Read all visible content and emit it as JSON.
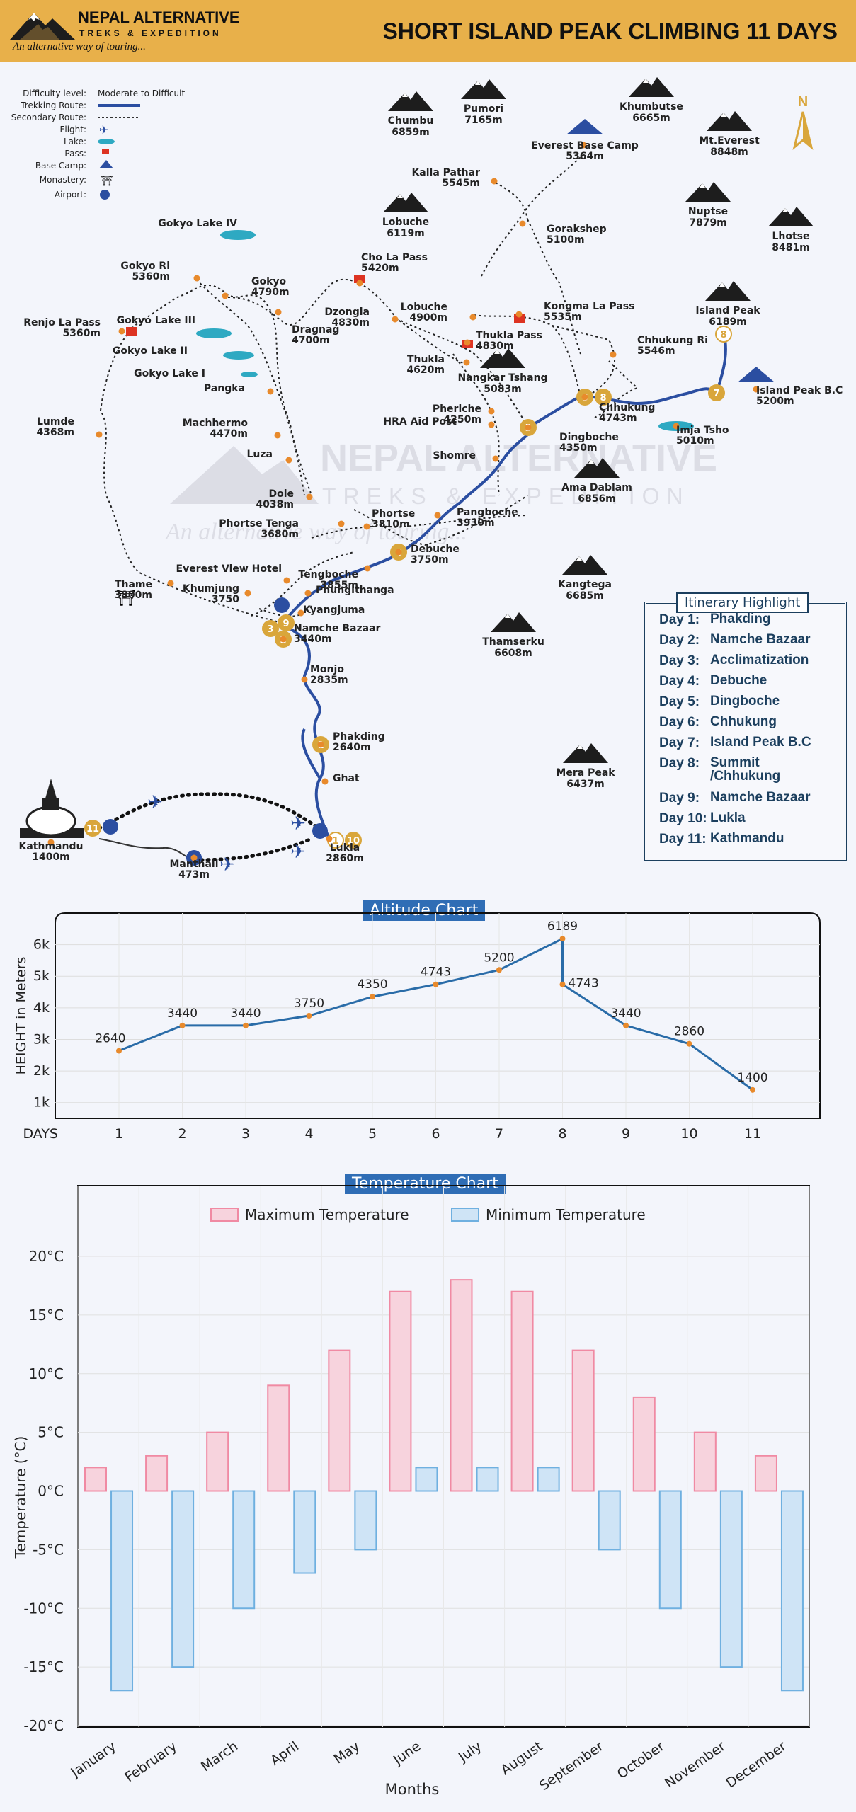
{
  "header": {
    "logo_name": "NEPAL ALTERNATIVE",
    "logo_sub": "TREKS & EXPEDITION",
    "logo_tag": "An alternative way of touring...",
    "title": "SHORT ISLAND PEAK CLIMBING  11 DAYS"
  },
  "legend": {
    "difficulty_label": "Difficulty level:",
    "difficulty_value": "Moderate to Difficult",
    "rows": [
      "Trekking Route:",
      "Secondary Route:",
      "Flight:",
      "Lake:",
      "Pass:",
      "Base Camp:",
      "Monastery:",
      "Airport:"
    ]
  },
  "compass": "N",
  "peaks": [
    {
      "name": "Chumbu",
      "alt": "6859m"
    },
    {
      "name": "Pumori",
      "alt": "7165m"
    },
    {
      "name": "Khumbutse",
      "alt": "6665m"
    },
    {
      "name": "Mt.Everest",
      "alt": "8848m"
    },
    {
      "name": "Nuptse",
      "alt": "7879m"
    },
    {
      "name": "Lhotse",
      "alt": "8481m"
    },
    {
      "name": "Lobuche",
      "alt": "6119m"
    },
    {
      "name": "Island Peak",
      "alt": "6189m"
    },
    {
      "name": "Nangkar Tshang",
      "alt": "5083m"
    },
    {
      "name": "Ama Dablam",
      "alt": "6856m"
    },
    {
      "name": "Kangtega",
      "alt": "6685m"
    },
    {
      "name": "Thamserku",
      "alt": "6608m"
    },
    {
      "name": "Mera Peak",
      "alt": "6437m"
    }
  ],
  "places": [
    {
      "name": "Everest Base Camp",
      "alt": "5364m"
    },
    {
      "name": "Kalla Pathar",
      "alt": "5545m"
    },
    {
      "name": "Gorakshep",
      "alt": "5100m"
    },
    {
      "name": "Gokyo Lake IV",
      "alt": ""
    },
    {
      "name": "Gokyo Ri",
      "alt": "5360m"
    },
    {
      "name": "Gokyo",
      "alt": "4790m"
    },
    {
      "name": "Cho La Pass",
      "alt": "5420m"
    },
    {
      "name": "Dzongla",
      "alt": "4830m"
    },
    {
      "name": "Lobuche",
      "alt": "4900m"
    },
    {
      "name": "Kongma La Pass",
      "alt": "5535m"
    },
    {
      "name": "Renjo La Pass",
      "alt": "5360m"
    },
    {
      "name": "Gokyo Lake III",
      "alt": ""
    },
    {
      "name": "Dragnag",
      "alt": "4700m"
    },
    {
      "name": "Thukla Pass",
      "alt": "4830m"
    },
    {
      "name": "Chhukung Ri",
      "alt": "5546m"
    },
    {
      "name": "Gokyo Lake II",
      "alt": ""
    },
    {
      "name": "Gokyo Lake I",
      "alt": ""
    },
    {
      "name": "Thukla",
      "alt": "4620m"
    },
    {
      "name": "Pangka",
      "alt": ""
    },
    {
      "name": "Chhukung",
      "alt": "4743m"
    },
    {
      "name": "Island Peak B.C",
      "alt": "5200m"
    },
    {
      "name": "Pheriche",
      "alt": "4250m"
    },
    {
      "name": "HRA Aid Post",
      "alt": ""
    },
    {
      "name": "Imja Tsho",
      "alt": "5010m"
    },
    {
      "name": "Lumde",
      "alt": "4368m"
    },
    {
      "name": "Machhermo",
      "alt": "4470m"
    },
    {
      "name": "Dingboche",
      "alt": "4350m"
    },
    {
      "name": "Luza",
      "alt": ""
    },
    {
      "name": "Shomre",
      "alt": ""
    },
    {
      "name": "Dole",
      "alt": "4038m"
    },
    {
      "name": "Phortse Tenga",
      "alt": "3680m"
    },
    {
      "name": "Phortse",
      "alt": "3810m"
    },
    {
      "name": "Pangboche",
      "alt": "3930m"
    },
    {
      "name": "Debuche",
      "alt": "3750m"
    },
    {
      "name": "Everest View Hotel",
      "alt": ""
    },
    {
      "name": "Tengboche",
      "alt": "3855m"
    },
    {
      "name": "Thame",
      "alt": "3800m"
    },
    {
      "name": "Khumjung",
      "alt": "3750"
    },
    {
      "name": "Phungithanga",
      "alt": ""
    },
    {
      "name": "Kyangjuma",
      "alt": ""
    },
    {
      "name": "Namche Bazaar",
      "alt": "3440m"
    },
    {
      "name": "Monjo",
      "alt": "2835m"
    },
    {
      "name": "Phakding",
      "alt": "2640m"
    },
    {
      "name": "Ghat",
      "alt": ""
    },
    {
      "name": "Kathmandu",
      "alt": "1400m"
    },
    {
      "name": "Lukla",
      "alt": "2860m"
    },
    {
      "name": "Manthali",
      "alt": "473m"
    }
  ],
  "watermark": {
    "name": "NEPAL ALTERNATIVE",
    "sub": "TREKS & EXPEDITION",
    "tag": "An alternative way of touring..."
  },
  "itinerary": {
    "title": "Itinerary Highlight",
    "items": [
      {
        "day": "Day 1:",
        "place": "Phakding"
      },
      {
        "day": "Day 2:",
        "place": "Namche Bazaar"
      },
      {
        "day": "Day 3:",
        "place": "Acclimatization"
      },
      {
        "day": "Day 4:",
        "place": "Debuche"
      },
      {
        "day": "Day 5:",
        "place": "Dingboche"
      },
      {
        "day": "Day 6:",
        "place": "Chhukung"
      },
      {
        "day": "Day 7:",
        "place": "Island Peak B.C"
      },
      {
        "day": "Day 8:",
        "place": "Summit /Chhukung"
      },
      {
        "day": "Day 9:",
        "place": "Namche Bazaar"
      },
      {
        "day": "Day 10:",
        "place": "Lukla"
      },
      {
        "day": "Day 11:",
        "place": "Kathmandu"
      }
    ]
  },
  "chart_data": [
    {
      "type": "line",
      "title": "Altitude Chart",
      "ylabel": "HEIGHT in Meters",
      "xlabel": "DAYS",
      "x": [
        1,
        2,
        3,
        4,
        5,
        6,
        7,
        8,
        8,
        9,
        10,
        11
      ],
      "y": [
        2640,
        3440,
        3440,
        3750,
        4350,
        4743,
        5200,
        6189,
        4743,
        3440,
        2860,
        1400
      ],
      "labels": [
        "2640",
        "3440",
        "3440",
        "3750",
        "4350",
        "4743",
        "5200",
        "6189",
        "4743",
        "3440",
        "2860",
        "1400"
      ],
      "yticks": [
        "1k",
        "2k",
        "3k",
        "4k",
        "5k",
        "6k"
      ],
      "xticks": [
        "1",
        "2",
        "3",
        "4",
        "5",
        "6",
        "7",
        "8",
        "9",
        "10",
        "11"
      ],
      "ylim": [
        500,
        7000
      ],
      "grid": true,
      "color": "#2a6ca8"
    },
    {
      "type": "bar",
      "title": "Temperature Chart",
      "xlabel": "Months",
      "ylabel": "Temperature (°C)",
      "categories": [
        "January",
        "February",
        "March",
        "April",
        "May",
        "June",
        "July",
        "August",
        "September",
        "October",
        "November",
        "December"
      ],
      "series": [
        {
          "name": "Maximum Temperature",
          "values": [
            2,
            3,
            5,
            9,
            12,
            17,
            18,
            17,
            12,
            8,
            5,
            3
          ],
          "color": "#f7d3dd",
          "stroke": "#f08aa3"
        },
        {
          "name": "Minimum Temperature",
          "values": [
            -17,
            -15,
            -10,
            -7,
            -5,
            2,
            2,
            2,
            -5,
            -10,
            -15,
            -17
          ],
          "color": "#cfe4f6",
          "stroke": "#6fb0e0"
        }
      ],
      "yticks": [
        "20°C",
        "15°C",
        "10°C",
        "5°C",
        "0°C",
        "-5°C",
        "-10°C",
        "-15°C",
        "-20°C"
      ],
      "ylim": [
        -20,
        20
      ],
      "legend": "top",
      "grid": true
    }
  ]
}
